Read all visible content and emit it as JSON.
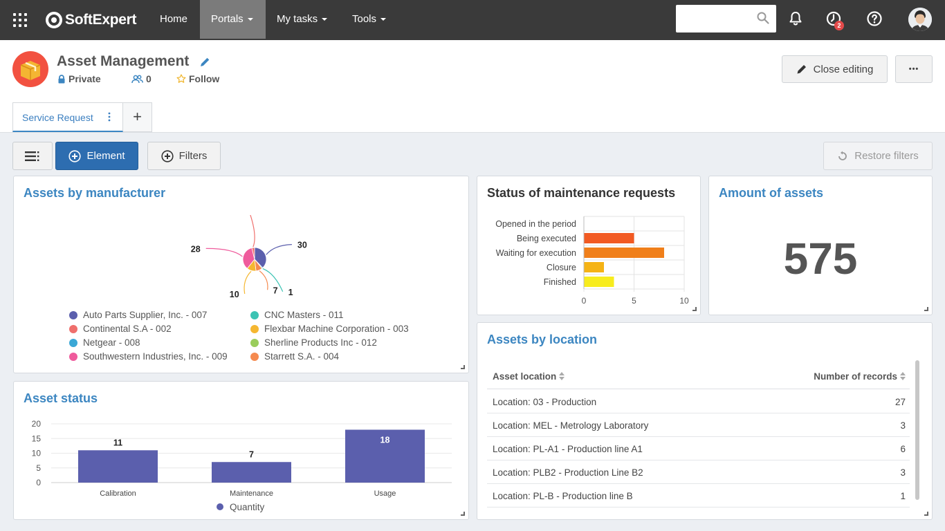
{
  "topbar": {
    "brand": "SoftExpert",
    "nav": [
      {
        "label": "Home",
        "dropdown": false,
        "active": false
      },
      {
        "label": "Portals",
        "dropdown": true,
        "active": true
      },
      {
        "label": "My tasks",
        "dropdown": true,
        "active": false
      },
      {
        "label": "Tools",
        "dropdown": true,
        "active": false
      }
    ],
    "search_value": "",
    "task_badge": "2"
  },
  "portal": {
    "title": "Asset Management",
    "privacy": "Private",
    "members": "0",
    "follow": "Follow",
    "close_editing": "Close editing",
    "more": "•••",
    "tabs": [
      {
        "label": "Service Request"
      }
    ],
    "add_tab": "+"
  },
  "toolbar": {
    "element": "Element",
    "filters": "Filters",
    "restore": "Restore filters"
  },
  "widgets": {
    "manufacturer": {
      "title": "Assets by manufacturer",
      "legend": [
        {
          "label": "Auto Parts Supplier, Inc. - 007",
          "color": "#5b5fad"
        },
        {
          "label": "CNC Masters - 011",
          "color": "#3cc3b3"
        },
        {
          "label": "Continental S.A - 002",
          "color": "#ef6f6c"
        },
        {
          "label": "Flexbar Machine Corporation - 003",
          "color": "#f5b731"
        },
        {
          "label": "Netgear - 008",
          "color": "#3ba8d6"
        },
        {
          "label": "Sherline Products Inc - 012",
          "color": "#9acd5c"
        },
        {
          "label": "Southwestern Industries, Inc. - 009",
          "color": "#ef5b9c"
        },
        {
          "label": "Starrett S.A. - 004",
          "color": "#f58a4f"
        }
      ]
    },
    "maintenance": {
      "title": "Status of maintenance requests"
    },
    "amount": {
      "title": "Amount of assets",
      "value": "575"
    },
    "asset_status": {
      "title": "Asset status"
    },
    "location": {
      "title": "Assets by location",
      "columns": [
        "Asset location",
        "Number of records"
      ],
      "rows": [
        {
          "location": "Location: 03 - Production",
          "count": "27"
        },
        {
          "location": "Location: MEL - Metrology Laboratory",
          "count": "3"
        },
        {
          "location": "Location: PL-A1 - Production line A1",
          "count": "6"
        },
        {
          "location": "Location: PLB2 - Production Line B2",
          "count": "3"
        },
        {
          "location": "Location: PL-B - Production line B",
          "count": "1"
        }
      ]
    }
  },
  "chart_data": [
    {
      "type": "pie",
      "categories": [
        "Auto Parts Supplier, Inc. - 007",
        "CNC Masters - 011",
        "Starrett S.A. - 004",
        "Flexbar Machine Corporation - 003",
        "Southwestern Industries, Inc. - 009",
        "Continental S.A - 002"
      ],
      "values": [
        30,
        1,
        7,
        10,
        28,
        3
      ],
      "colors": [
        "#5b5fad",
        "#3cc3b3",
        "#f58a4f",
        "#f5b731",
        "#ef5b9c",
        "#ef6f6c"
      ],
      "legend": "bottom"
    },
    {
      "type": "bar",
      "orientation": "horizontal",
      "categories": [
        "Opened in the period",
        "Being executed",
        "Waiting for execution",
        "Closure",
        "Finished"
      ],
      "values": [
        0,
        5,
        8,
        2,
        3
      ],
      "colors": [
        "#f25a22",
        "#f25a22",
        "#f07f1a",
        "#f5b315",
        "#f7ec1e"
      ],
      "xlim": [
        0,
        10
      ],
      "xticks": [
        0,
        5,
        10
      ],
      "grid": true
    },
    {
      "type": "bar",
      "categories": [
        "Calibration",
        "Maintenance",
        "Usage"
      ],
      "series": [
        {
          "name": "Quantity",
          "values": [
            11,
            7,
            18
          ],
          "color": "#5b5fad"
        }
      ],
      "ylim": [
        0,
        20
      ],
      "yticks": [
        0,
        5,
        10,
        15,
        20
      ],
      "legend": "bottom",
      "grid": true
    }
  ]
}
